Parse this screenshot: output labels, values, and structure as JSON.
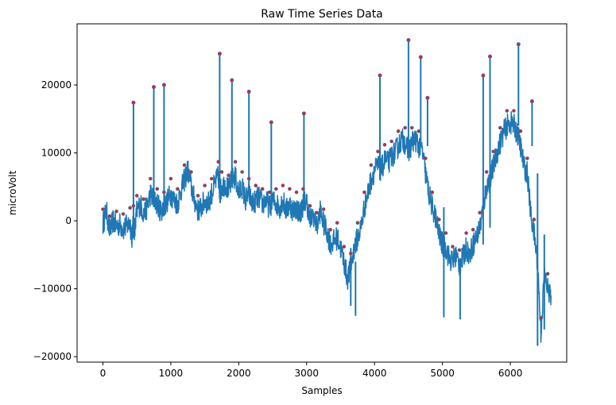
{
  "chart_data": {
    "type": "line",
    "title": "Raw Time Series Data",
    "xlabel": "Samples",
    "ylabel": "microVolt",
    "xlim": [
      -380,
      6830
    ],
    "ylim": [
      -20800,
      29000
    ],
    "x_ticks": [
      0,
      1000,
      2000,
      3000,
      4000,
      5000,
      6000
    ],
    "y_ticks": [
      -20000,
      -10000,
      0,
      10000,
      20000
    ],
    "y_tick_labels": [
      "−20000",
      "−10000",
      "0",
      "10000",
      "20000"
    ],
    "grid": false,
    "legend": "none",
    "colors": {
      "line": "#1f77b4",
      "marker_face": "#d62728",
      "marker_edge": "#1f77b4"
    },
    "series": [
      {
        "x": [
          0,
          50,
          100,
          150,
          200,
          250,
          300,
          350,
          400,
          430,
          450,
          470,
          500,
          550,
          600,
          650,
          700,
          750,
          800,
          850,
          900,
          950,
          1000,
          1050,
          1100,
          1150,
          1200,
          1250,
          1300,
          1350,
          1400,
          1450,
          1500,
          1550,
          1600,
          1650,
          1700,
          1720,
          1750,
          1800,
          1850,
          1900,
          1950,
          2000,
          2050,
          2100,
          2150,
          2200,
          2250,
          2300,
          2350,
          2400,
          2450,
          2500,
          2550,
          2600,
          2650,
          2700,
          2750,
          2800,
          2850,
          2900,
          2950,
          3000,
          3050,
          3100,
          3150,
          3200,
          3250,
          3300,
          3350,
          3400,
          3450,
          3500,
          3550,
          3600,
          3650,
          3700,
          3750,
          3800,
          3850,
          3900,
          3950,
          4000,
          4050,
          4100,
          4150,
          4200,
          4250,
          4300,
          4350,
          4400,
          4450,
          4500,
          4550,
          4600,
          4650,
          4700,
          4750,
          4800,
          4850,
          4900,
          4950,
          5000,
          5050,
          5100,
          5150,
          5200,
          5250,
          5300,
          5350,
          5400,
          5450,
          5500,
          5550,
          5600,
          5650,
          5700,
          5750,
          5800,
          5850,
          5900,
          5950,
          6000,
          6050,
          6100,
          6150,
          6200,
          6250,
          6300,
          6350,
          6400,
          6450,
          6500,
          6550,
          6600
        ],
        "y": [
          -500,
          1500,
          -1500,
          0,
          -800,
          -500,
          -1200,
          -800,
          -300,
          -2500,
          0,
          -1500,
          1500,
          2500,
          1000,
          2000,
          4000,
          3000,
          2500,
          1500,
          2000,
          3000,
          4000,
          3000,
          2500,
          4500,
          6000,
          7500,
          5000,
          3000,
          1500,
          2000,
          3000,
          2500,
          4000,
          5500,
          6500,
          4000,
          5000,
          5500,
          4500,
          6000,
          6500,
          4000,
          5000,
          3000,
          4000,
          2500,
          3000,
          3500,
          2500,
          3000,
          2000,
          3000,
          2500,
          2000,
          3000,
          1500,
          2500,
          1500,
          2000,
          1000,
          2500,
          3000,
          0,
          1000,
          -1000,
          1500,
          -500,
          -1500,
          -3500,
          -3000,
          -2500,
          -4000,
          -6000,
          -8500,
          -7000,
          -4000,
          -2500,
          -1000,
          2000,
          4000,
          6000,
          7500,
          8000,
          7500,
          9000,
          8500,
          9500,
          10000,
          11000,
          12000,
          11500,
          10000,
          11500,
          12000,
          11000,
          10500,
          7000,
          4000,
          2000,
          500,
          -2000,
          -3500,
          -4000,
          -5500,
          -6000,
          -5000,
          -6500,
          -5500,
          -4000,
          -5000,
          -3500,
          -2500,
          -1000,
          2000,
          5000,
          6000,
          8000,
          10000,
          11500,
          13000,
          14000,
          14500,
          14000,
          13000,
          11000,
          8000,
          7000,
          1000,
          -2000,
          -6000,
          -16500,
          -8000,
          -10000,
          -11000
        ]
      }
    ],
    "spikes": [
      {
        "x": 450,
        "y": 17400
      },
      {
        "x": 750,
        "y": 19700
      },
      {
        "x": 900,
        "y": 20000
      },
      {
        "x": 1720,
        "y": 24600
      },
      {
        "x": 1900,
        "y": 20700
      },
      {
        "x": 2150,
        "y": 19000
      },
      {
        "x": 2480,
        "y": 14500
      },
      {
        "x": 2960,
        "y": 15800
      },
      {
        "x": 4080,
        "y": 21400
      },
      {
        "x": 4500,
        "y": 26600
      },
      {
        "x": 4680,
        "y": 24100
      },
      {
        "x": 4780,
        "y": 18100
      },
      {
        "x": 5600,
        "y": 21400
      },
      {
        "x": 5700,
        "y": 24200
      },
      {
        "x": 6120,
        "y": 26000
      },
      {
        "x": 6320,
        "y": 17600
      }
    ],
    "dips": [
      {
        "x": 3650,
        "y": -12500
      },
      {
        "x": 3720,
        "y": -14000
      },
      {
        "x": 5020,
        "y": -14200
      },
      {
        "x": 5260,
        "y": -14500
      },
      {
        "x": 6400,
        "y": -18400
      },
      {
        "x": 6500,
        "y": -16000
      }
    ]
  }
}
